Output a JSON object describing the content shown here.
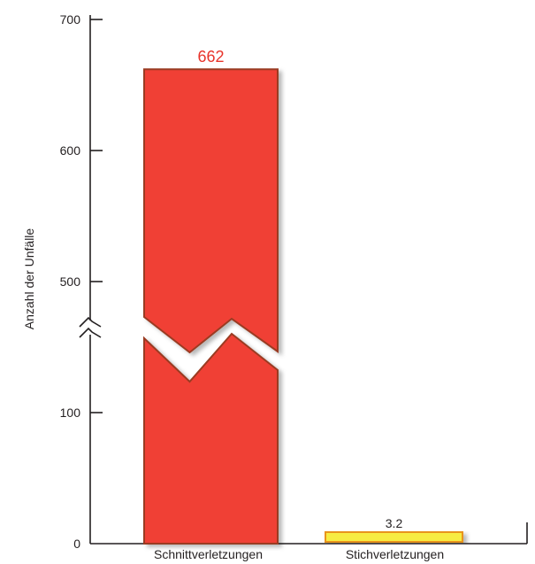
{
  "chart_data": {
    "type": "bar",
    "categories": [
      "Schnittverletzungen",
      "Stichverletzungen"
    ],
    "values": [
      662,
      3.2
    ],
    "data_labels": [
      "662",
      "3.2"
    ],
    "ylabel": "Anzahl der Unfälle",
    "yticks": [
      "0",
      "100",
      "500",
      "600",
      "700"
    ],
    "axis_break": true,
    "lower_segment": [
      0,
      200
    ],
    "upper_segment": [
      400,
      700
    ],
    "bar_colors": [
      "#f04136",
      "#f7ec43"
    ],
    "bar_outline_colors": [
      "#9a3b22",
      "#e8941d"
    ],
    "label_colors": [
      "#e8342b",
      "#231f20"
    ],
    "grid": false,
    "legend": "none"
  }
}
